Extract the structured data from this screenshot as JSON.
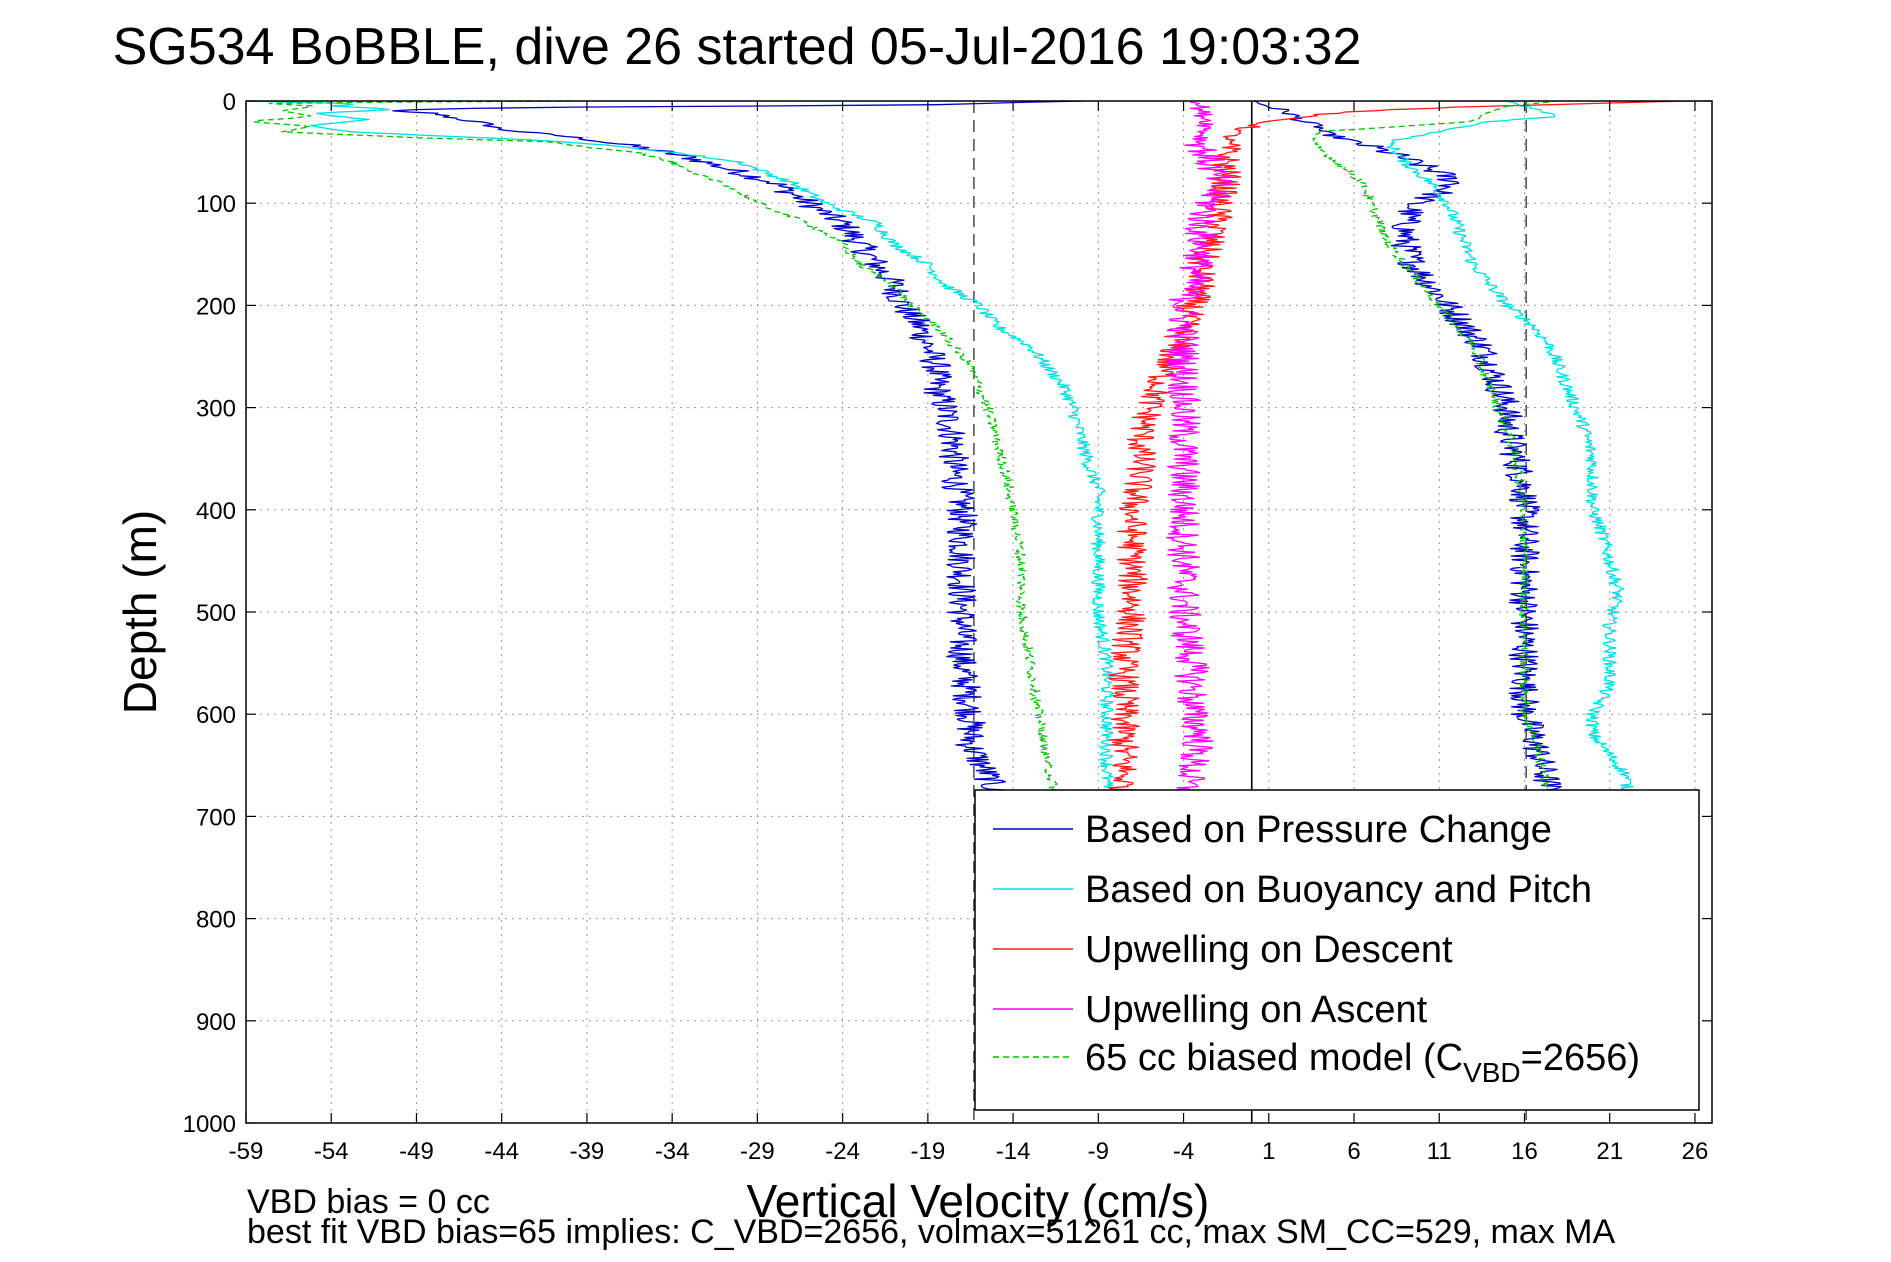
{
  "chart_data": {
    "type": "line",
    "title": "SG534 BoBBLE, dive 26 started 05-Jul-2016 19:03:32",
    "xlabel": "Vertical Velocity (cm/s)",
    "ylabel": "Depth (m)",
    "xlim": [
      -59,
      27
    ],
    "ylim": [
      0,
      1000
    ],
    "y_reversed": true,
    "grid": true,
    "xticks": [
      -59,
      -54,
      -49,
      -44,
      -39,
      -34,
      -29,
      -24,
      -19,
      -14,
      -9,
      -4,
      1,
      6,
      11,
      16,
      21,
      26
    ],
    "yticks": [
      0,
      100,
      200,
      300,
      400,
      500,
      600,
      700,
      800,
      900,
      1000
    ],
    "reference_lines": [
      {
        "x": -16.3,
        "style": "dashed",
        "color": "#555555"
      },
      {
        "x": 16.1,
        "style": "dashed",
        "color": "#555555"
      },
      {
        "x": 0,
        "style": "solid",
        "color": "#000000"
      }
    ],
    "legend_position": "lower-right",
    "legend": [
      {
        "label": "Based on Pressure Change",
        "color": "#0000c8",
        "style": "solid"
      },
      {
        "label": "Based on Buoyancy and Pitch",
        "color": "#00e0e0",
        "style": "solid"
      },
      {
        "label": "Upwelling on Descent",
        "color": "#ff1a1a",
        "style": "solid"
      },
      {
        "label": "Upwelling on Ascent",
        "color": "#ff00ff",
        "style": "solid"
      },
      {
        "label_prefix": "65 cc biased model (C",
        "label_sub": "VBD",
        "label_suffix": "=2656)",
        "color": "#00c000",
        "style": "dashed"
      }
    ],
    "series": [
      {
        "name": "Based on Pressure Change",
        "color": "#0000c8",
        "noise": 0.9,
        "segments": [
          {
            "depth": [
              0,
              4,
              6,
              8,
              10,
              12,
              16,
              22,
              28,
              35,
              45,
              55,
              65,
              80,
              100,
              120,
              140,
              160,
              180,
              200,
              220,
              240,
              260,
              280,
              300,
              330,
              360,
              400,
              450,
              500,
              550,
              600,
              630,
              660,
              680
            ],
            "velocity": [
              -10,
              -20,
              -40,
              -49,
              -51,
              -48,
              -47,
              -45,
              -44,
              -40,
              -36,
              -33,
              -31,
              -28,
              -26,
              -24,
              -23,
              -22,
              -21,
              -20.5,
              -19.5,
              -19,
              -18.5,
              -18.5,
              -18,
              -17.5,
              -17.5,
              -17,
              -17,
              -17,
              -17,
              -16.5,
              -16.5,
              -15.5,
              -15
            ]
          },
          {
            "depth": [
              675,
              650,
              620,
              600,
              550,
              500,
              450,
              400,
              380,
              350,
              320,
              300,
              280,
              260,
              240,
              220,
              200,
              180,
              160,
              140,
              120,
              100,
              90,
              80,
              70,
              60,
              50,
              40,
              35,
              30,
              25,
              20,
              10,
              0
            ],
            "velocity": [
              17.5,
              17,
              16.5,
              16,
              16,
              16,
              16,
              16,
              16,
              15.5,
              15,
              15,
              14.5,
              14,
              13.5,
              12.5,
              11.5,
              10.5,
              9.5,
              9,
              9,
              9.5,
              11,
              12,
              11,
              9.5,
              8,
              6,
              5,
              4,
              4,
              3,
              2,
              0
            ]
          }
        ]
      },
      {
        "name": "Based on Buoyancy and Pitch",
        "color": "#00e0e0",
        "noise": 0.4,
        "segments": [
          {
            "depth": [
              0,
              3,
              5,
              8,
              12,
              18,
              24,
              30,
              40,
              50,
              60,
              80,
              100,
              120,
              140,
              160,
              180,
              200,
              220,
              240,
              260,
              280,
              300,
              330,
              360,
              380,
              400,
              450,
              500,
              550,
              600,
              640,
              670,
              680
            ],
            "velocity": [
              -59,
              -52,
              -54,
              -50,
              -55,
              -52,
              -55,
              -53,
              -40,
              -34,
              -30,
              -27,
              -25,
              -22,
              -21,
              -19,
              -18,
              -16,
              -15,
              -13,
              -12,
              -11,
              -10.5,
              -10,
              -9.5,
              -9,
              -9,
              -9,
              -9,
              -8.5,
              -8.5,
              -8.5,
              -8.5,
              -8.5
            ]
          },
          {
            "depth": [
              680,
              660,
              640,
              620,
              600,
              570,
              540,
              510,
              480,
              450,
              420,
              400,
              380,
              350,
              320,
              300,
              280,
              260,
              240,
              220,
              200,
              180,
              160,
              140,
              120,
              100,
              80,
              60,
              40,
              30,
              20,
              15,
              10,
              5,
              0
            ],
            "velocity": [
              22,
              22,
              21,
              20,
              20,
              21,
              21,
              21,
              21.5,
              21,
              20.5,
              20,
              20,
              20,
              19.5,
              19,
              18.5,
              18,
              17.5,
              16.5,
              15,
              14,
              13,
              12.5,
              12,
              11.5,
              10.5,
              9,
              8,
              11,
              14,
              18,
              17,
              16,
              15
            ]
          }
        ]
      },
      {
        "name": "Upwelling on Descent",
        "color": "#ff1a1a",
        "noise": 0.9,
        "segments": [
          {
            "depth": [
              0,
              5,
              10,
              15,
              20,
              25,
              30,
              40,
              60,
              80,
              100,
              120,
              140,
              160,
              180,
              200,
              220,
              240,
              260,
              280,
              300,
              330,
              360,
              400,
              450,
              500,
              550,
              600,
              640,
              670,
              680
            ],
            "velocity": [
              26,
              14,
              6,
              3,
              1,
              0,
              -1,
              -1.5,
              -1.5,
              -1.5,
              -2,
              -2,
              -2.5,
              -3,
              -3,
              -3.5,
              -4,
              -4.5,
              -5,
              -5.5,
              -6,
              -6.5,
              -6.5,
              -7,
              -7,
              -7,
              -7.5,
              -7.5,
              -7.5,
              -7.5,
              -7.5
            ]
          }
        ]
      },
      {
        "name": "Upwelling on Ascent",
        "color": "#ff00ff",
        "noise": 1.0,
        "segments": [
          {
            "depth": [
              680,
              650,
              620,
              600,
              550,
              500,
              450,
              400,
              350,
              300,
              260,
              220,
              200,
              180,
              150,
              120,
              100,
              80,
              60,
              40,
              20,
              10,
              0
            ],
            "velocity": [
              -4,
              -3.5,
              -3,
              -3.5,
              -3.5,
              -4,
              -4,
              -4,
              -4,
              -4,
              -4,
              -4,
              -4,
              -3.5,
              -3,
              -3,
              -2.5,
              -2,
              -2.5,
              -3,
              -2.5,
              -3,
              -3
            ]
          }
        ]
      },
      {
        "name": "65 cc biased model (C_VBD=2656)",
        "color": "#00c000",
        "dashed": true,
        "noise": 0.3,
        "segments": [
          {
            "depth": [
              0,
              2,
              5,
              10,
              15,
              20,
              25,
              30,
              36,
              40,
              45,
              50,
              60,
              70,
              80,
              100,
              120,
              140,
              160,
              180,
              200,
              220,
              240,
              260,
              280,
              300,
              330,
              360,
              400,
              450,
              500,
              550,
              600,
              650,
              680
            ],
            "velocity": [
              -40,
              -58,
              -55,
              -57,
              -55,
              -59,
              -55,
              -57,
              -49,
              -41,
              -39,
              -36,
              -34,
              -33,
              -31,
              -29,
              -26,
              -24,
              -23,
              -21,
              -20,
              -18.5,
              -17.5,
              -16.5,
              -16,
              -15.5,
              -15,
              -14.5,
              -14,
              -13.5,
              -13.5,
              -13,
              -12.5,
              -12,
              -11.5
            ]
          },
          {
            "depth": [
              680,
              650,
              620,
              600,
              550,
              500,
              450,
              400,
              350,
              320,
              300,
              280,
              260,
              240,
              220,
              200,
              180,
              160,
              140,
              120,
              100,
              80,
              60,
              40,
              30,
              20,
              10,
              5,
              0
            ],
            "velocity": [
              17.5,
              17,
              16.5,
              16,
              16,
              16,
              16,
              16,
              15.5,
              15,
              14.5,
              14,
              13.5,
              13,
              12,
              11,
              10,
              9,
              8,
              7.5,
              7,
              6.5,
              5,
              3.5,
              4,
              13,
              14,
              15,
              18
            ]
          }
        ]
      }
    ]
  },
  "footer": {
    "line1": "VBD bias = 0 cc",
    "line2": "best fit VBD bias=65 implies: C_VBD=2656, volmax=51261 cc, max SM_CC=529, max MA"
  }
}
